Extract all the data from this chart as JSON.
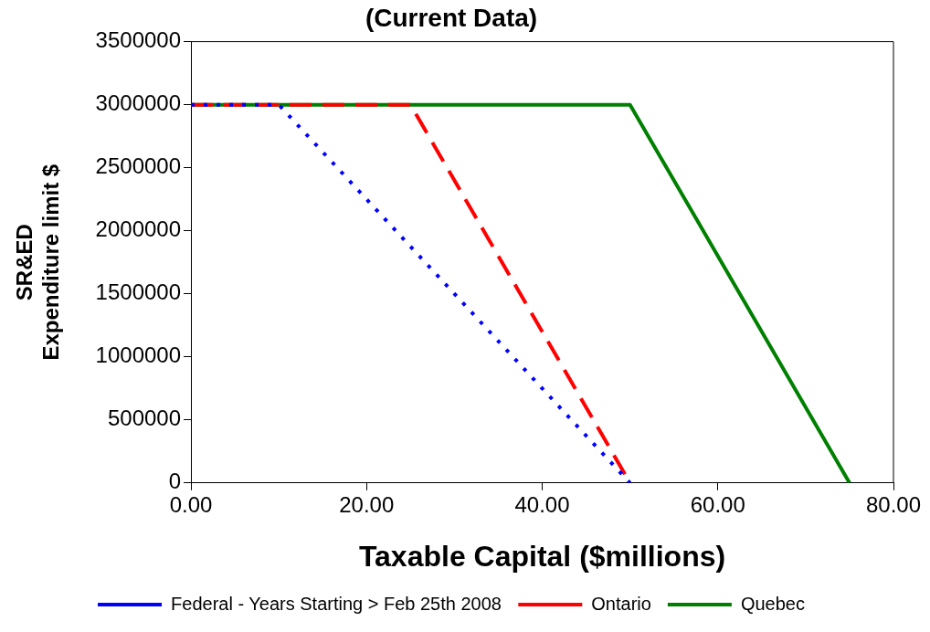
{
  "chart_data": {
    "type": "line",
    "title": "(Current Data)",
    "xlabel": "Taxable Capital ($millions)",
    "ylabel": "SR&ED Expenditure limit $",
    "xlim": [
      0,
      80
    ],
    "xticks": [
      {
        "value": 0,
        "label": "0.00"
      },
      {
        "value": 20,
        "label": "20.00"
      },
      {
        "value": 40,
        "label": "40.00"
      },
      {
        "value": 60,
        "label": "60.00"
      },
      {
        "value": 80,
        "label": "80.00"
      }
    ],
    "ylim": [
      0,
      3500000
    ],
    "yticks": [
      0,
      500000,
      1000000,
      1500000,
      2000000,
      2500000,
      3000000,
      3500000
    ],
    "grid": false,
    "legend": "bottom",
    "marker": "none",
    "series": [
      {
        "name": "Federal - Years Starting > Feb 25th 2008",
        "color": "#0000ff",
        "line_style": "dotted",
        "x": [
          0,
          10,
          50
        ],
        "values": [
          3000000,
          3000000,
          0
        ]
      },
      {
        "name": "Ontario",
        "color": "#ff0000",
        "line_style": "dashed",
        "x": [
          0,
          25,
          50
        ],
        "values": [
          3000000,
          3000000,
          0
        ]
      },
      {
        "name": "Quebec",
        "color": "#008000",
        "line_style": "solid",
        "x": [
          0,
          50,
          75
        ],
        "values": [
          3000000,
          3000000,
          0
        ]
      }
    ]
  }
}
